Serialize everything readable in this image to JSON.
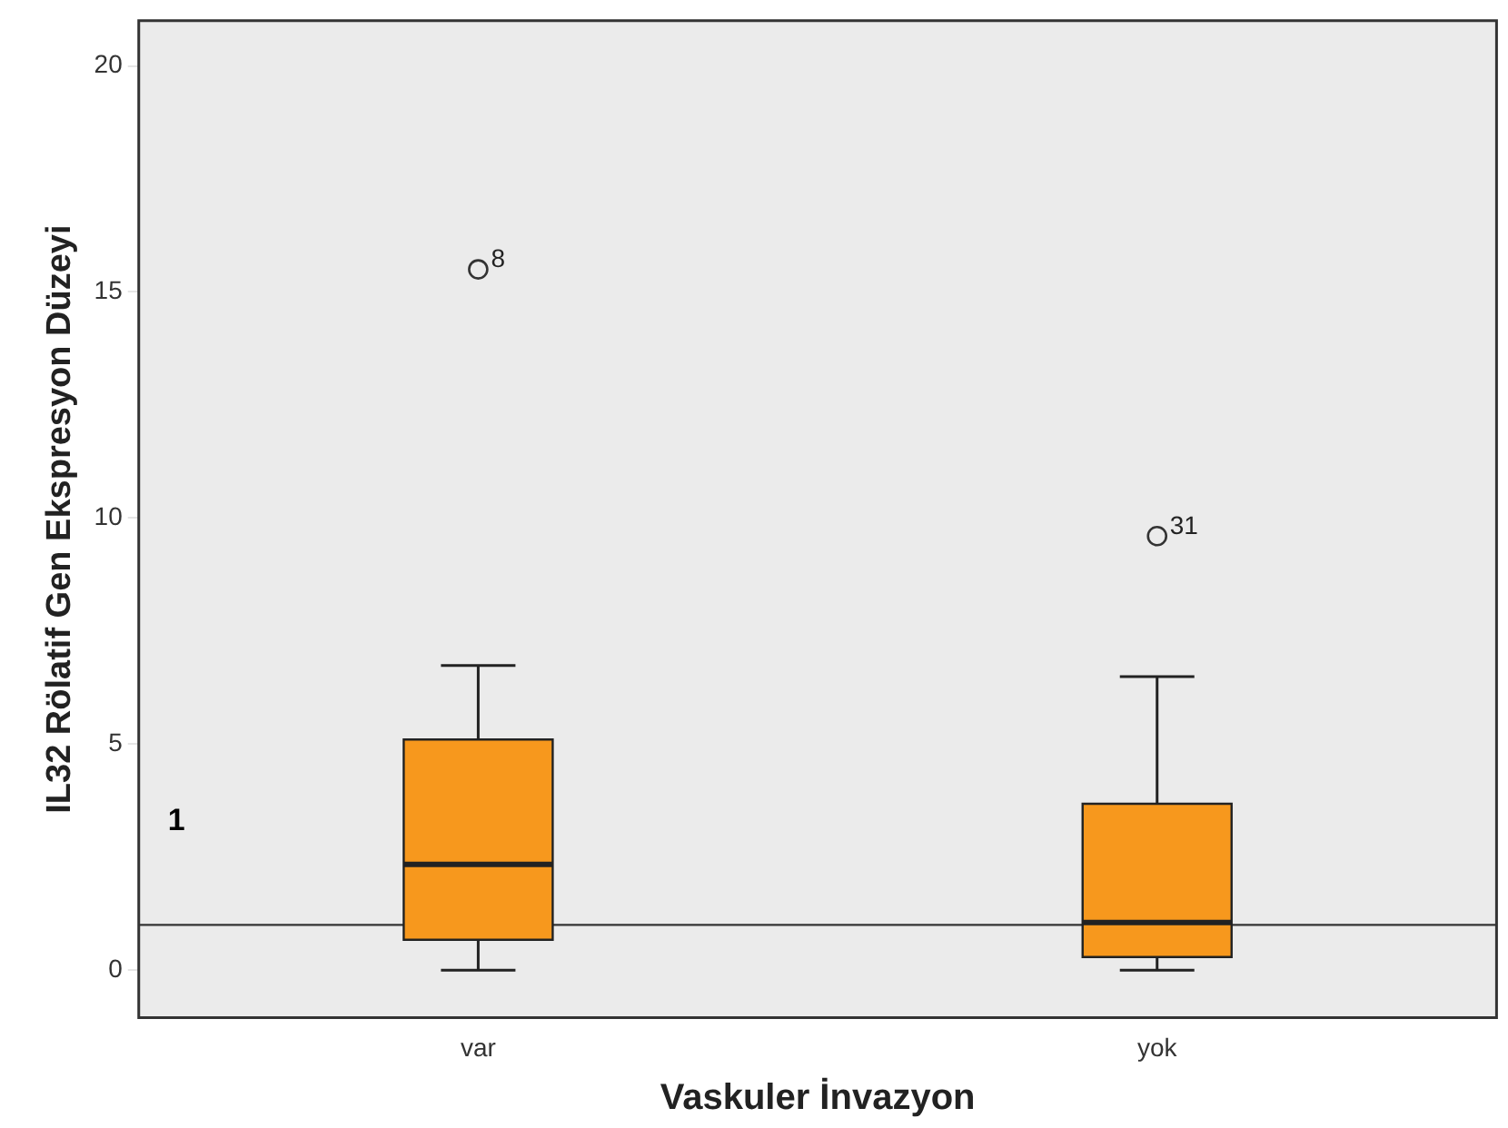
{
  "chart_data": {
    "type": "box",
    "xlabel": "Vaskuler İnvazyon",
    "ylabel": "IL32 Rölatif Gen Ekspresyon Düzeyi",
    "categories": [
      "var",
      "yok"
    ],
    "boxes": [
      {
        "low": 0,
        "q1": 0.67,
        "median": 2.34,
        "q3": 5.1,
        "high": 6.74,
        "outliers": [
          15.5
        ]
      },
      {
        "low": 0,
        "q1": 0.29,
        "median": 1.05,
        "q3": 3.68,
        "high": 6.49,
        "outliers": [
          9.6
        ]
      }
    ],
    "color": "#f7981d",
    "ylim": [
      -1.05,
      21
    ],
    "yticks": [
      0,
      5,
      10,
      15,
      20
    ],
    "grid": false,
    "legend": false,
    "ref_lines": [
      {
        "axis": "y",
        "value": 1,
        "label": "1",
        "color": "#333333"
      }
    ],
    "annotations": [
      "8",
      "31"
    ]
  }
}
